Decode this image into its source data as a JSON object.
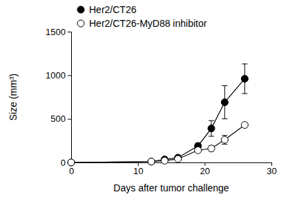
{
  "chart_data": {
    "type": "line",
    "x_label": "Days after tumor challenge",
    "y_label": "Size (mm³)",
    "x": [
      0,
      12,
      14,
      16,
      19,
      21,
      23,
      26
    ],
    "series": [
      {
        "name": "Her2/CT26",
        "color": "#000000",
        "marker": "filled",
        "values": [
          0,
          10,
          35,
          55,
          190,
          390,
          690,
          960
        ],
        "errors": [
          0,
          5,
          10,
          15,
          30,
          90,
          190,
          170
        ]
      },
      {
        "name": "Her2/CT26-MyD88 inhibitor",
        "color": "#000000",
        "marker": "open",
        "values": [
          0,
          10,
          20,
          40,
          140,
          160,
          260,
          430
        ],
        "errors": [
          0,
          5,
          8,
          10,
          20,
          30,
          50,
          20
        ]
      }
    ],
    "xlim": [
      0,
      30
    ],
    "xticks": [
      0,
      10,
      20,
      30
    ],
    "ylim": [
      0,
      1500
    ],
    "yticks": [
      0,
      500,
      1000,
      1500
    ],
    "legend": "upper left"
  }
}
